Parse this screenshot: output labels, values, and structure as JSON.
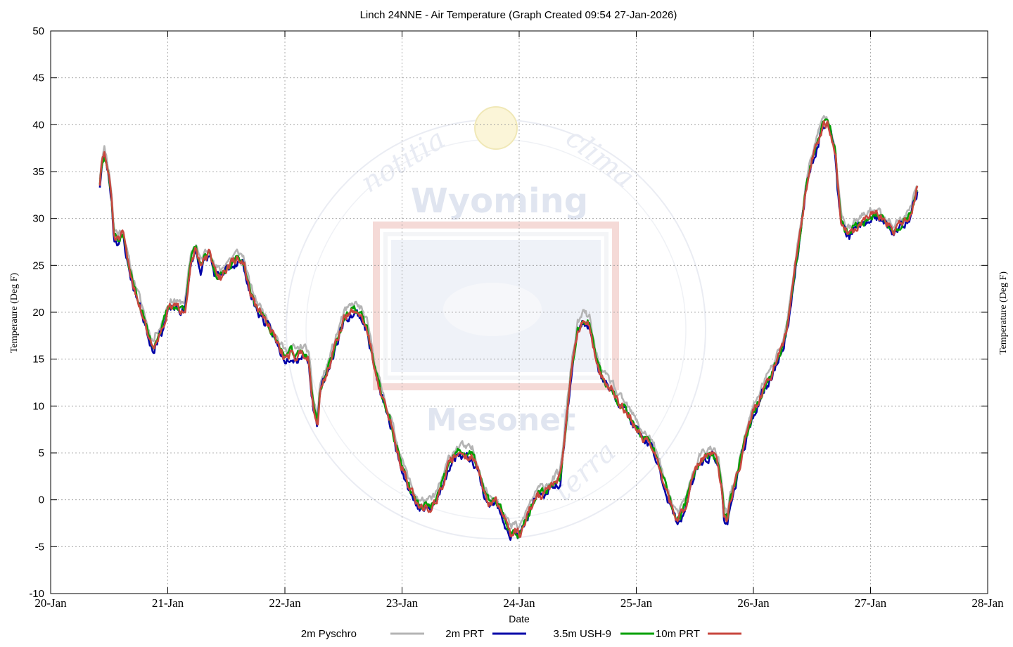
{
  "chart_data": {
    "type": "line",
    "title": "Linch 24NNE - Air Temperature (Graph Created 09:54 27-Jan-2026)",
    "xlabel": "Date",
    "ylabel_left": "Temperaure (Deg F)",
    "ylabel_right": "Temperature (Deg F)",
    "x_ticks": [
      "20-Jan",
      "21-Jan",
      "22-Jan",
      "23-Jan",
      "24-Jan",
      "25-Jan",
      "26-Jan",
      "27-Jan",
      "28-Jan"
    ],
    "xlim": [
      0,
      8
    ],
    "x_units": "days from 20-Jan 00:00",
    "ylim": [
      -10,
      50
    ],
    "y_ticks": [
      -10,
      -5,
      0,
      5,
      10,
      15,
      20,
      25,
      30,
      35,
      40,
      45,
      50
    ],
    "grid": true,
    "legend_position": "bottom",
    "watermark": {
      "main": "Wyoming",
      "sub": "Mesonet",
      "arc_top_left": "notitia",
      "arc_top_right": "clima",
      "arc_bottom_right": "terra"
    },
    "base_series": [
      [
        0.42,
        33.5
      ],
      [
        0.44,
        36.0
      ],
      [
        0.46,
        36.7
      ],
      [
        0.48,
        35.5
      ],
      [
        0.5,
        34.0
      ],
      [
        0.52,
        32.0
      ],
      [
        0.54,
        28.0
      ],
      [
        0.58,
        27.5
      ],
      [
        0.62,
        28.0
      ],
      [
        0.66,
        25.0
      ],
      [
        0.7,
        23.0
      ],
      [
        0.75,
        21.0
      ],
      [
        0.8,
        19.0
      ],
      [
        0.83,
        17.5
      ],
      [
        0.86,
        16.5
      ],
      [
        0.88,
        16.0
      ],
      [
        0.9,
        17.0
      ],
      [
        0.95,
        18.0
      ],
      [
        1.0,
        20.0
      ],
      [
        1.05,
        20.5
      ],
      [
        1.1,
        20.0
      ],
      [
        1.15,
        20.5
      ],
      [
        1.2,
        25.5
      ],
      [
        1.24,
        26.5
      ],
      [
        1.28,
        24.5
      ],
      [
        1.32,
        25.5
      ],
      [
        1.36,
        26.0
      ],
      [
        1.4,
        24.0
      ],
      [
        1.45,
        23.5
      ],
      [
        1.5,
        24.5
      ],
      [
        1.55,
        25.0
      ],
      [
        1.6,
        25.5
      ],
      [
        1.65,
        25.0
      ],
      [
        1.7,
        22.0
      ],
      [
        1.75,
        20.5
      ],
      [
        1.8,
        19.5
      ],
      [
        1.85,
        18.5
      ],
      [
        1.9,
        17.5
      ],
      [
        1.95,
        16.0
      ],
      [
        2.0,
        15.0
      ],
      [
        2.05,
        15.5
      ],
      [
        2.1,
        15.0
      ],
      [
        2.15,
        15.5
      ],
      [
        2.2,
        15.0
      ],
      [
        2.24,
        10.0
      ],
      [
        2.28,
        8.0
      ],
      [
        2.3,
        11.5
      ],
      [
        2.35,
        13.0
      ],
      [
        2.4,
        15.0
      ],
      [
        2.45,
        17.0
      ],
      [
        2.5,
        19.0
      ],
      [
        2.55,
        19.5
      ],
      [
        2.6,
        20.0
      ],
      [
        2.65,
        19.5
      ],
      [
        2.7,
        18.0
      ],
      [
        2.75,
        15.0
      ],
      [
        2.8,
        12.0
      ],
      [
        2.85,
        10.0
      ],
      [
        2.9,
        8.0
      ],
      [
        2.95,
        5.5
      ],
      [
        3.0,
        3.5
      ],
      [
        3.05,
        1.5
      ],
      [
        3.1,
        0.0
      ],
      [
        3.15,
        -1.0
      ],
      [
        3.2,
        -1.0
      ],
      [
        3.25,
        -1.0
      ],
      [
        3.3,
        0.0
      ],
      [
        3.35,
        1.5
      ],
      [
        3.4,
        3.5
      ],
      [
        3.45,
        4.5
      ],
      [
        3.5,
        5.0
      ],
      [
        3.55,
        4.5
      ],
      [
        3.6,
        4.5
      ],
      [
        3.65,
        3.0
      ],
      [
        3.7,
        0.5
      ],
      [
        3.75,
        -0.5
      ],
      [
        3.8,
        -0.5
      ],
      [
        3.85,
        -1.5
      ],
      [
        3.9,
        -3.0
      ],
      [
        3.93,
        -4.0
      ],
      [
        3.96,
        -3.5
      ],
      [
        4.0,
        -4.0
      ],
      [
        4.05,
        -2.5
      ],
      [
        4.1,
        -1.0
      ],
      [
        4.15,
        0.0
      ],
      [
        4.2,
        0.5
      ],
      [
        4.25,
        1.0
      ],
      [
        4.3,
        1.5
      ],
      [
        4.35,
        2.0
      ],
      [
        4.4,
        8.0
      ],
      [
        4.45,
        14.0
      ],
      [
        4.5,
        18.0
      ],
      [
        4.55,
        19.0
      ],
      [
        4.6,
        18.5
      ],
      [
        4.65,
        15.0
      ],
      [
        4.7,
        13.0
      ],
      [
        4.75,
        12.0
      ],
      [
        4.8,
        11.5
      ],
      [
        4.85,
        10.0
      ],
      [
        4.9,
        9.5
      ],
      [
        4.95,
        8.5
      ],
      [
        5.0,
        7.5
      ],
      [
        5.05,
        6.5
      ],
      [
        5.1,
        6.0
      ],
      [
        5.15,
        5.0
      ],
      [
        5.2,
        3.0
      ],
      [
        5.25,
        1.0
      ],
      [
        5.3,
        -1.0
      ],
      [
        5.35,
        -2.5
      ],
      [
        5.4,
        -1.5
      ],
      [
        5.45,
        0.5
      ],
      [
        5.5,
        2.5
      ],
      [
        5.55,
        4.0
      ],
      [
        5.6,
        4.5
      ],
      [
        5.65,
        4.5
      ],
      [
        5.7,
        3.5
      ],
      [
        5.73,
        1.0
      ],
      [
        5.75,
        -2.0
      ],
      [
        5.78,
        -2.5
      ],
      [
        5.8,
        -0.5
      ],
      [
        5.85,
        1.5
      ],
      [
        5.9,
        4.5
      ],
      [
        5.95,
        7.0
      ],
      [
        6.0,
        9.0
      ],
      [
        6.05,
        10.5
      ],
      [
        6.1,
        12.0
      ],
      [
        6.15,
        13.0
      ],
      [
        6.2,
        14.5
      ],
      [
        6.25,
        16.0
      ],
      [
        6.3,
        19.0
      ],
      [
        6.35,
        24.0
      ],
      [
        6.4,
        28.0
      ],
      [
        6.45,
        33.0
      ],
      [
        6.5,
        36.0
      ],
      [
        6.55,
        38.0
      ],
      [
        6.6,
        40.0
      ],
      [
        6.65,
        39.5
      ],
      [
        6.7,
        37.0
      ],
      [
        6.72,
        33.0
      ],
      [
        6.75,
        29.5
      ],
      [
        6.78,
        28.5
      ],
      [
        6.82,
        28.0
      ],
      [
        6.85,
        28.5
      ],
      [
        6.9,
        29.0
      ],
      [
        6.95,
        29.5
      ],
      [
        7.0,
        30.0
      ],
      [
        7.05,
        30.0
      ],
      [
        7.1,
        29.5
      ],
      [
        7.15,
        29.0
      ],
      [
        7.2,
        28.5
      ],
      [
        7.25,
        29.0
      ],
      [
        7.3,
        29.5
      ],
      [
        7.35,
        30.5
      ],
      [
        7.4,
        33.0
      ]
    ],
    "series": [
      {
        "name": "2m Pyschro",
        "color": "#b4b4b4",
        "offset": 0.9,
        "noise": 0.7,
        "noise_seed": 11
      },
      {
        "name": "2m PRT",
        "color": "#0000a8",
        "offset": 0.0,
        "noise": 0.8,
        "noise_seed": 23
      },
      {
        "name": "3.5m USH-9",
        "color": "#00a000",
        "offset": 0.3,
        "noise": 0.7,
        "noise_seed": 37
      },
      {
        "name": "10m PRT",
        "color": "#c8473e",
        "offset": 0.2,
        "noise": 0.8,
        "noise_seed": 51
      }
    ]
  }
}
